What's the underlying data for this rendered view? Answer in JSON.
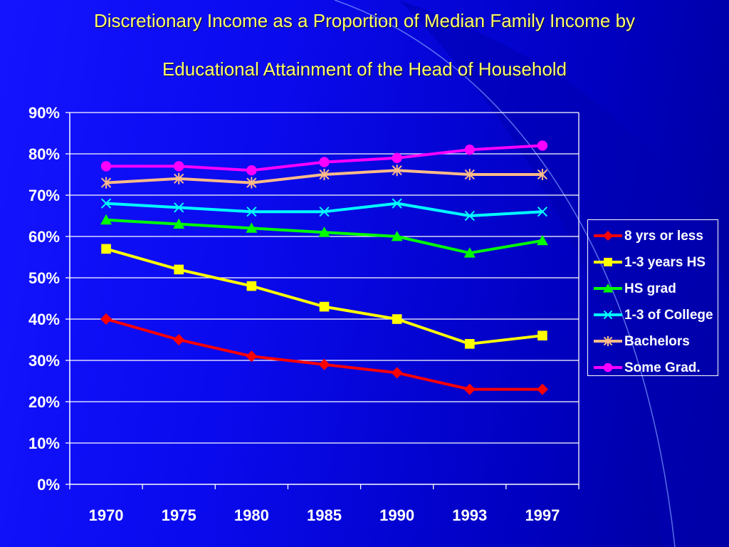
{
  "title": {
    "line1": "Discretionary Income as a Proportion of Median Family Income by",
    "line2": "Educational Attainment of the Head of Household"
  },
  "colors": {
    "title": "#ffff66",
    "axis": "#ffffff"
  },
  "chart_data": {
    "type": "line",
    "title": "Discretionary Income as a Proportion of Median Family Income by Educational Attainment of the Head of Household",
    "xlabel": "",
    "ylabel": "",
    "categories": [
      "1970",
      "1975",
      "1980",
      "1985",
      "1990",
      "1993",
      "1997"
    ],
    "ylim": [
      0,
      90
    ],
    "ytick_labels": [
      "0%",
      "10%",
      "20%",
      "30%",
      "40%",
      "50%",
      "60%",
      "70%",
      "80%",
      "90%"
    ],
    "grid": true,
    "legend_position": "right",
    "series": [
      {
        "name": "8 yrs or less",
        "color": "#ff0000",
        "marker": "diamond",
        "values": [
          40,
          35,
          31,
          29,
          27,
          23,
          23
        ]
      },
      {
        "name": "1-3 years HS",
        "color": "#ffff00",
        "marker": "square",
        "values": [
          57,
          52,
          48,
          43,
          40,
          34,
          36
        ]
      },
      {
        "name": "HS grad",
        "color": "#00ff00",
        "marker": "triangle",
        "values": [
          64,
          63,
          62,
          61,
          60,
          56,
          59
        ]
      },
      {
        "name": "1-3 of College",
        "color": "#00ffff",
        "marker": "x",
        "values": [
          68,
          67,
          66,
          66,
          68,
          65,
          66
        ]
      },
      {
        "name": "Bachelors",
        "color": "#ffbb88",
        "marker": "asterisk",
        "values": [
          73,
          74,
          73,
          75,
          76,
          75,
          75
        ]
      },
      {
        "name": "Some Grad.",
        "color": "#ff00ff",
        "marker": "circle",
        "values": [
          77,
          77,
          76,
          78,
          79,
          81,
          82
        ]
      }
    ]
  }
}
